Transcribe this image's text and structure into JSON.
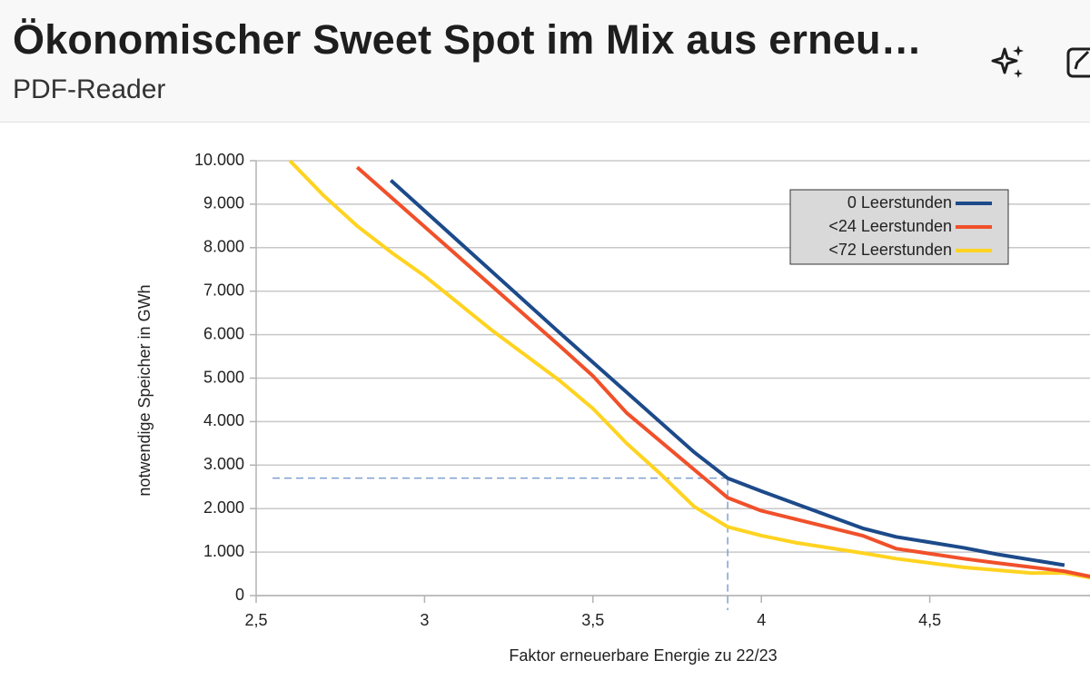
{
  "header": {
    "title": "Ökonomischer Sweet Spot im Mix aus erneu…",
    "subtitle": "PDF-Reader"
  },
  "chart_data": {
    "type": "line",
    "x_label": "Faktor erneuerbare Energie zu 22/23",
    "y_label": "notwendige Speicher in GWh",
    "xlim": [
      2.5,
      5
    ],
    "xticks": [
      {
        "value": 2.5,
        "label": "2,5"
      },
      3,
      {
        "value": 3.5,
        "label": "3,5"
      },
      4,
      {
        "value": 4.5,
        "label": "4,5"
      }
    ],
    "ylim": [
      0,
      10000
    ],
    "yticks": [
      0,
      {
        "value": 1000,
        "label": "1.000"
      },
      {
        "value": 2000,
        "label": "2.000"
      },
      {
        "value": 3000,
        "label": "3.000"
      },
      {
        "value": 4000,
        "label": "4.000"
      },
      {
        "value": 5000,
        "label": "5.000"
      },
      {
        "value": 6000,
        "label": "6.000"
      },
      {
        "value": 7000,
        "label": "7.000"
      },
      {
        "value": 8000,
        "label": "8.000"
      },
      {
        "value": 9000,
        "label": "9.000"
      },
      {
        "value": 10000,
        "label": "10.000"
      }
    ],
    "grid": true,
    "legend": "top-right",
    "reference": {
      "x": 3.9,
      "y": 2700,
      "color": "#7f9fd0"
    },
    "series": [
      {
        "name": "0 Leerstunden",
        "color": "#1c4a8a",
        "x": [
          2.9,
          3.4,
          3.8,
          3.9,
          4.0,
          4.3,
          4.4,
          4.6,
          4.7,
          4.9
        ],
        "values": [
          9550,
          6050,
          3300,
          2700,
          2400,
          1550,
          1350,
          1100,
          950,
          700
        ]
      },
      {
        "name": "<24 Leerstunden",
        "color": "#f0502a",
        "x": [
          2.8,
          3.4,
          3.5,
          3.6,
          3.8,
          3.9,
          4.0,
          4.3,
          4.4,
          4.6,
          4.7,
          4.9,
          5.0
        ],
        "values": [
          9850,
          5750,
          5050,
          4200,
          2900,
          2250,
          1950,
          1380,
          1080,
          850,
          750,
          560,
          400
        ]
      },
      {
        "name": "<72 Leerstunden",
        "color": "#ffd320",
        "x": [
          2.6,
          2.7,
          2.8,
          2.9,
          3.0,
          3.2,
          3.4,
          3.5,
          3.6,
          3.7,
          3.8,
          3.9,
          4.0,
          4.1,
          4.3,
          4.4,
          4.6,
          4.8,
          4.9,
          5.0
        ],
        "values": [
          10000,
          9200,
          8500,
          7900,
          7350,
          6100,
          4950,
          4300,
          3500,
          2800,
          2050,
          1580,
          1380,
          1220,
          980,
          850,
          650,
          520,
          520,
          380
        ]
      }
    ]
  }
}
